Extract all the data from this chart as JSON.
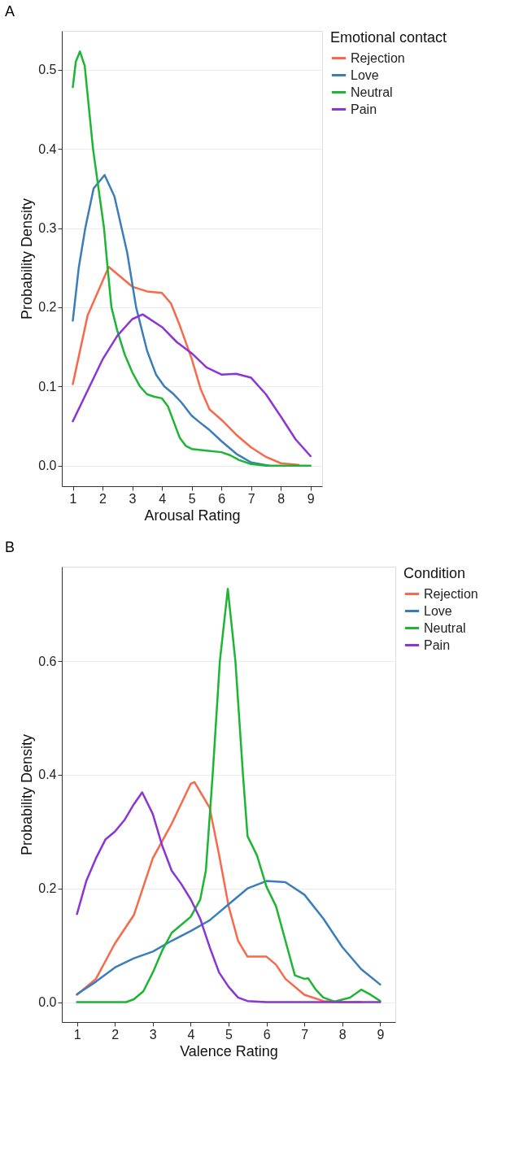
{
  "chart_data": [
    {
      "type": "line",
      "title": "A",
      "xlabel": "Arousal Rating",
      "ylabel": "Probability Density",
      "legend_title": "Emotional contact",
      "legend": "right",
      "grid": "y",
      "marker": "none",
      "line_style": "solid",
      "xlim": [
        0.63,
        9.39
      ],
      "ylim": [
        -0.026,
        0.549
      ],
      "xticks": [
        1,
        2,
        3,
        4,
        5,
        6,
        7,
        8,
        9
      ],
      "yticks": [
        {
          "value": 0,
          "label": "0.0"
        },
        0.1,
        0.2,
        0.3,
        0.4,
        0.5
      ],
      "series": [
        {
          "name": "Rejection",
          "color": "#f8694b",
          "x": [
            1.0,
            1.5,
            2.21,
            3.0,
            3.5,
            4.0,
            4.3,
            4.6,
            5.0,
            5.3,
            5.6,
            6.0,
            6.5,
            7.0,
            7.5,
            8.0,
            8.6
          ],
          "values": [
            0.103,
            0.19,
            0.251,
            0.226,
            0.22,
            0.218,
            0.205,
            0.177,
            0.135,
            0.097,
            0.071,
            0.058,
            0.039,
            0.023,
            0.011,
            0.003,
            0.001
          ]
        },
        {
          "name": "Love",
          "color": "#3b7dba",
          "x": [
            1.0,
            1.2,
            1.42,
            1.7,
            2.07,
            2.4,
            2.83,
            3.13,
            3.5,
            3.8,
            4.08,
            4.4,
            4.65,
            5.0,
            5.26,
            5.6,
            6.0,
            6.5,
            7.0,
            7.6
          ],
          "values": [
            0.183,
            0.25,
            0.3,
            0.35,
            0.367,
            0.34,
            0.269,
            0.2,
            0.145,
            0.115,
            0.1,
            0.09,
            0.08,
            0.063,
            0.055,
            0.045,
            0.031,
            0.015,
            0.004,
            0.0
          ]
        },
        {
          "name": "Neutral",
          "color": "#1db534",
          "x": [
            1.0,
            1.1,
            1.24,
            1.4,
            1.68,
            2.05,
            2.17,
            2.3,
            2.5,
            2.75,
            3.0,
            3.26,
            3.5,
            3.75,
            4.0,
            4.2,
            4.4,
            4.6,
            4.8,
            5.0,
            5.5,
            6.0,
            6.3,
            6.6,
            7.0,
            7.5,
            8.0,
            9.0
          ],
          "values": [
            0.478,
            0.51,
            0.523,
            0.505,
            0.4,
            0.3,
            0.25,
            0.2,
            0.17,
            0.14,
            0.118,
            0.1,
            0.09,
            0.087,
            0.085,
            0.075,
            0.055,
            0.035,
            0.025,
            0.021,
            0.019,
            0.017,
            0.013,
            0.007,
            0.002,
            0.0,
            0.0,
            0.0
          ]
        },
        {
          "name": "Pain",
          "color": "#8a35d4",
          "x": [
            1.0,
            2.0,
            2.5,
            3.0,
            3.35,
            4.0,
            4.5,
            5.0,
            5.5,
            6.0,
            6.5,
            7.0,
            7.5,
            8.0,
            8.5,
            9.0
          ],
          "values": [
            0.056,
            0.134,
            0.164,
            0.185,
            0.191,
            0.175,
            0.156,
            0.142,
            0.124,
            0.115,
            0.116,
            0.111,
            0.09,
            0.062,
            0.033,
            0.012
          ]
        }
      ]
    },
    {
      "type": "line",
      "title": "B",
      "xlabel": "Valence Rating",
      "ylabel": "Probability Density",
      "legend_title": "Condition",
      "legend": "right",
      "grid": "y",
      "marker": "none",
      "line_style": "solid",
      "xlim": [
        0.6,
        9.4
      ],
      "ylim": [
        -0.035,
        0.766
      ],
      "xticks": [
        1,
        2,
        3,
        4,
        5,
        6,
        7,
        8,
        9
      ],
      "yticks": [
        {
          "value": 0,
          "label": "0.0"
        },
        0.2,
        0.4,
        0.6
      ],
      "series": [
        {
          "name": "Rejection",
          "color": "#f8694b",
          "x": [
            1.0,
            1.5,
            2.0,
            2.5,
            3.0,
            3.5,
            4.0,
            4.1,
            4.5,
            4.75,
            5.0,
            5.25,
            5.5,
            6.0,
            6.25,
            6.5,
            7.0,
            7.5,
            8.0,
            8.5
          ],
          "values": [
            0.013,
            0.041,
            0.103,
            0.153,
            0.253,
            0.314,
            0.384,
            0.387,
            0.342,
            0.259,
            0.169,
            0.108,
            0.08,
            0.08,
            0.066,
            0.041,
            0.013,
            0.002,
            0.0,
            0.0
          ]
        },
        {
          "name": "Love",
          "color": "#3b7dba",
          "x": [
            1.0,
            1.5,
            2.0,
            2.5,
            3.0,
            3.5,
            4.0,
            4.5,
            5.0,
            5.5,
            6.0,
            6.5,
            7.0,
            7.5,
            8.0,
            8.5,
            9.0
          ],
          "values": [
            0.014,
            0.036,
            0.061,
            0.077,
            0.089,
            0.108,
            0.125,
            0.144,
            0.172,
            0.2,
            0.213,
            0.211,
            0.189,
            0.147,
            0.097,
            0.058,
            0.031
          ]
        },
        {
          "name": "Neutral",
          "color": "#1db534",
          "x": [
            1.0,
            1.5,
            2.0,
            2.3,
            2.5,
            2.75,
            3.0,
            3.25,
            3.5,
            3.75,
            4.0,
            4.25,
            4.4,
            4.58,
            4.77,
            4.98,
            5.18,
            5.38,
            5.5,
            5.75,
            6.0,
            6.25,
            6.5,
            6.75,
            7.0,
            7.1,
            7.3,
            7.5,
            7.8,
            8.2,
            8.5,
            8.75,
            9.0
          ],
          "values": [
            0.0,
            0.0,
            0.0,
            0.0,
            0.005,
            0.019,
            0.052,
            0.091,
            0.122,
            0.136,
            0.15,
            0.18,
            0.231,
            0.4,
            0.6,
            0.727,
            0.6,
            0.4,
            0.292,
            0.258,
            0.203,
            0.169,
            0.108,
            0.047,
            0.041,
            0.042,
            0.022,
            0.008,
            0.001,
            0.008,
            0.022,
            0.013,
            0.002
          ]
        },
        {
          "name": "Pain",
          "color": "#8a35d4",
          "x": [
            1.0,
            1.25,
            1.5,
            1.75,
            2.0,
            2.25,
            2.5,
            2.72,
            3.0,
            3.25,
            3.5,
            3.75,
            4.0,
            4.25,
            4.5,
            4.75,
            5.0,
            5.25,
            5.5,
            6.0,
            7.0,
            8.0,
            9.0
          ],
          "values": [
            0.155,
            0.214,
            0.253,
            0.286,
            0.3,
            0.32,
            0.348,
            0.369,
            0.331,
            0.275,
            0.231,
            0.208,
            0.181,
            0.147,
            0.097,
            0.052,
            0.027,
            0.008,
            0.002,
            0.0,
            0.0,
            0.0,
            0.0
          ]
        }
      ]
    }
  ]
}
